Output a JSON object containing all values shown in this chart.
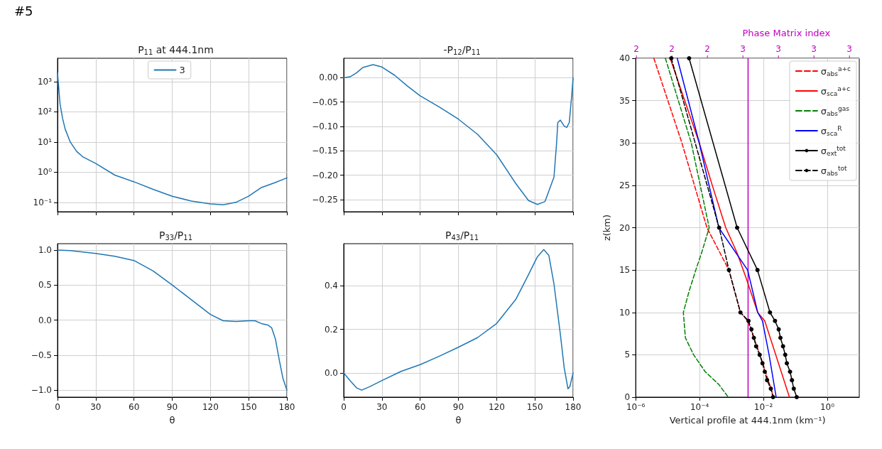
{
  "chart_data": [
    {
      "type": "line",
      "title": "P$_{11}$ at 444.1nm",
      "annotations": [
        "#5"
      ],
      "log": "y",
      "grid": true,
      "legend": "top",
      "tick_labels": "y",
      "marker": "none",
      "line_style": "solid",
      "xlim": [
        0,
        180
      ],
      "xticks": [
        0,
        30,
        60,
        90,
        120,
        150,
        180
      ],
      "ylim": [
        0.049,
        6000
      ],
      "yticks": [
        {
          "value": 0.1,
          "label": "10⁻¹"
        },
        {
          "value": 1,
          "label": "10⁰"
        },
        {
          "value": 10,
          "label": "10¹"
        },
        {
          "value": 100,
          "label": "10²"
        },
        {
          "value": 1000,
          "label": "10³"
        }
      ],
      "x": [
        0,
        2,
        4,
        6,
        10,
        15,
        20,
        30,
        45,
        60,
        75,
        90,
        105,
        120,
        130,
        140,
        150,
        160,
        170,
        180
      ],
      "series": [
        {
          "name": "3",
          "color": "#1f77b4",
          "values": [
            2000,
            180,
            60,
            27,
            10,
            4.9,
            3.2,
            1.95,
            0.8,
            0.48,
            0.27,
            0.16,
            0.11,
            0.089,
            0.083,
            0.1,
            0.16,
            0.31,
            0.44,
            0.65
          ]
        }
      ]
    },
    {
      "type": "line",
      "title": "-P$_{12}$/P$_{11}$",
      "grid": true,
      "legend": false,
      "tick_labels": "y",
      "marker": "none",
      "line_style": "solid",
      "xlim": [
        0,
        180
      ],
      "xticks": [
        0,
        30,
        60,
        90,
        120,
        150,
        180
      ],
      "ylim": [
        -0.275,
        0.04
      ],
      "yticks": [
        {
          "value": -0.25,
          "label": "−0.25"
        },
        {
          "value": -0.2,
          "label": "−0.20"
        },
        {
          "value": -0.15,
          "label": "−0.15"
        },
        {
          "value": -0.1,
          "label": "−0.10"
        },
        {
          "value": -0.05,
          "label": "−0.05"
        },
        {
          "value": 0,
          "label": "0.00"
        }
      ],
      "x": [
        0,
        5,
        10,
        15,
        23,
        30,
        40,
        50,
        60,
        75,
        90,
        105,
        120,
        135,
        145,
        152,
        158,
        163,
        165,
        167,
        168,
        170,
        173,
        175,
        177,
        179,
        180
      ],
      "series": [
        {
          "color": "#1f77b4",
          "values": [
            0,
            0.002,
            0.01,
            0.021,
            0.027,
            0.022,
            0.005,
            -0.017,
            -0.037,
            -0.06,
            -0.085,
            -0.116,
            -0.158,
            -0.217,
            -0.252,
            -0.26,
            -0.254,
            -0.218,
            -0.204,
            -0.136,
            -0.092,
            -0.087,
            -0.099,
            -0.102,
            -0.092,
            -0.034,
            0
          ]
        }
      ]
    },
    {
      "type": "line",
      "title": "P$_{33}$/P$_{11}$",
      "xlabel": "θ",
      "grid": true,
      "legend": false,
      "marker": "none",
      "line_style": "solid",
      "xlim": [
        0,
        180
      ],
      "xticks": [
        0,
        30,
        60,
        90,
        120,
        150,
        180
      ],
      "ylim": [
        -1.1,
        1.09
      ],
      "yticks": [
        {
          "value": -1,
          "label": "−1.0"
        },
        {
          "value": -0.5,
          "label": "−0.5"
        },
        {
          "value": 0,
          "label": "0.0"
        },
        {
          "value": 0.5,
          "label": "0.5"
        },
        {
          "value": 1,
          "label": "1.0"
        }
      ],
      "x": [
        0,
        10,
        20,
        30,
        45,
        60,
        75,
        90,
        105,
        120,
        130,
        140,
        150,
        155,
        160,
        165,
        168,
        171,
        174,
        177,
        180
      ],
      "series": [
        {
          "color": "#1f77b4",
          "values": [
            1.0,
            0.99,
            0.97,
            0.95,
            0.91,
            0.85,
            0.7,
            0.5,
            0.29,
            0.08,
            -0.01,
            -0.02,
            -0.01,
            -0.01,
            -0.05,
            -0.07,
            -0.11,
            -0.27,
            -0.57,
            -0.84,
            -1.0
          ]
        }
      ]
    },
    {
      "type": "line",
      "title": "P$_{43}$/P$_{11}$",
      "xlabel": "θ",
      "grid": true,
      "legend": false,
      "marker": "none",
      "line_style": "solid",
      "xlim": [
        0,
        180
      ],
      "xticks": [
        0,
        30,
        60,
        90,
        120,
        150,
        180
      ],
      "ylim": [
        -0.111,
        0.593
      ],
      "yticks": [
        {
          "value": 0,
          "label": "0.0"
        },
        {
          "value": 0.2,
          "label": "0.2"
        },
        {
          "value": 0.4,
          "label": "0.4"
        }
      ],
      "x": [
        0,
        5,
        10,
        14,
        20,
        30,
        45,
        60,
        75,
        90,
        105,
        120,
        135,
        145,
        152,
        157,
        161,
        165,
        170,
        173,
        176,
        177.5,
        180
      ],
      "series": [
        {
          "color": "#1f77b4",
          "values": [
            0,
            -0.035,
            -0.068,
            -0.079,
            -0.064,
            -0.035,
            0.007,
            0.038,
            0.077,
            0.118,
            0.162,
            0.227,
            0.337,
            0.451,
            0.533,
            0.566,
            0.539,
            0.408,
            0.178,
            0.025,
            -0.073,
            -0.062,
            0
          ]
        }
      ]
    },
    {
      "type": "line",
      "xlabel": "Vertical profile at 444.1nm (km⁻¹)",
      "ylabel": "z(km)",
      "x2label": "Phase Matrix index",
      "log": "x",
      "grid": true,
      "legend": "top right",
      "marker": "none",
      "line_style": "solid",
      "xlim": [
        1e-06,
        10
      ],
      "xticks": [
        {
          "value": 1e-06,
          "label": "10⁻⁶"
        },
        {
          "value": 0.0001,
          "label": "10⁻⁴"
        },
        {
          "value": 0.01,
          "label": "10⁻²"
        },
        {
          "value": 1,
          "label": "10⁰"
        }
      ],
      "annotations": [
        "2",
        "2",
        "2",
        "3",
        "3",
        "3",
        "3"
      ],
      "ylim": [
        0,
        40
      ],
      "yticks": [
        0,
        5,
        10,
        15,
        20,
        25,
        30,
        35,
        40
      ],
      "ref_lines": [
        {
          "axis": "x",
          "value": 0.0033,
          "color": "#bf00bf"
        }
      ],
      "series": [
        {
          "name": "σ$_{abs}$$^{a+c}$",
          "color": "#ff0000",
          "line_style": "dashed",
          "x": [
            3.7e-06,
            2.8e-05,
            0.00017,
            0.00083,
            0.0019,
            0.0032,
            0.0078,
            0.021
          ],
          "values": [
            40,
            30,
            20,
            15,
            10,
            9,
            5,
            0
          ]
        },
        {
          "name": "σ$_{sca}$$^{a+c}$",
          "color": "#ff0000",
          "x": [
            1.2e-05,
            9.8e-05,
            0.00025,
            0.00066,
            0.0015,
            0.0029,
            0.0066,
            0.011,
            0.065
          ],
          "values": [
            40,
            30,
            25,
            20,
            17,
            14,
            10,
            9,
            0
          ]
        },
        {
          "name": "σ$_{abs}$$^{gas}$",
          "color": "#008000",
          "line_style": "dashed",
          "x": [
            8.5e-06,
            5.5e-05,
            0.0002,
            0.000115,
            7.6e-05,
            4.7e-05,
            3.1e-05,
            3.6e-05,
            6.5e-05,
            0.00015,
            0.0004,
            0.00079
          ],
          "values": [
            40,
            30,
            20,
            17,
            15,
            12.5,
            10,
            7,
            5,
            3,
            1.5,
            0
          ]
        },
        {
          "name": "σ$_{sca}$$^{R}$",
          "color": "#0000ff",
          "x": [
            2e-05,
            9.8e-05,
            0.0004,
            0.0032,
            0.0066,
            0.0093,
            0.015,
            0.025
          ],
          "values": [
            40,
            30,
            20,
            15,
            10,
            9,
            5,
            0
          ]
        },
        {
          "name": "σ$_{ext}$$^{tot}$",
          "color": "#000000",
          "marker": "circle",
          "x": [
            4.7e-05,
            0.0015,
            0.0065,
            0.016,
            0.023,
            0.03,
            0.034,
            0.041,
            0.048,
            0.054,
            0.068,
            0.078,
            0.089,
            0.11
          ],
          "values": [
            40,
            20,
            15,
            10,
            9,
            8,
            7,
            6,
            5,
            4,
            3,
            2,
            1,
            0
          ]
        },
        {
          "name": "σ$_{abs}$$^{tot}$",
          "color": "#000000",
          "marker": "circle",
          "line_style": "dashed",
          "x": [
            1.3e-05,
            0.00041,
            0.00083,
            0.0019,
            0.0034,
            0.0042,
            0.005,
            0.0059,
            0.0076,
            0.0093,
            0.011,
            0.013,
            0.017,
            0.02
          ],
          "values": [
            40,
            20,
            15,
            10,
            9,
            8,
            7,
            6,
            5,
            4,
            3,
            2,
            1,
            0
          ]
        }
      ]
    }
  ]
}
